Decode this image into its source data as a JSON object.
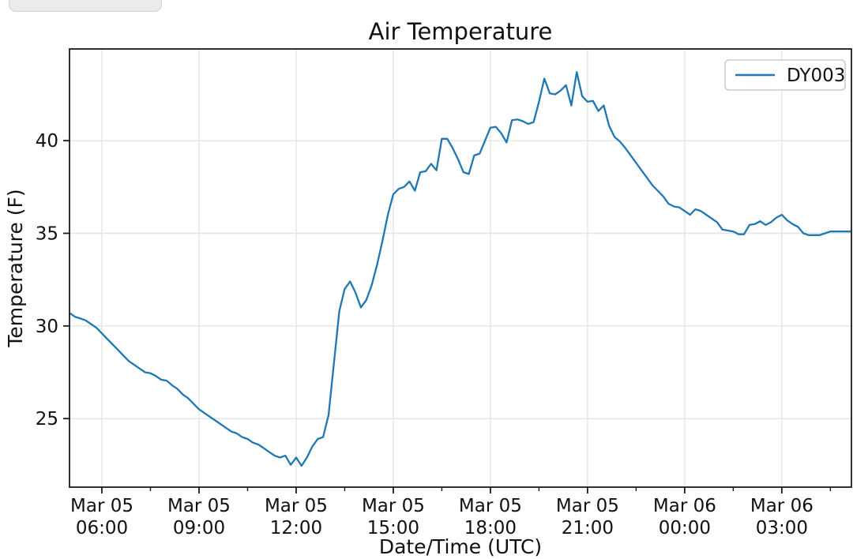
{
  "chart_data": {
    "type": "line",
    "title": "Air Temperature",
    "xlabel": "Date/Time (UTC)",
    "ylabel": "Temperature (F)",
    "grid": true,
    "legend": {
      "position": "upper right",
      "entries": [
        "DY003"
      ]
    },
    "colors": {
      "line": "#1f77b4",
      "grid": "#e5e5e5",
      "spine": "#1a1a1a",
      "legend_border": "#cccccc"
    },
    "xlim_hours": [
      5.0,
      29.15
    ],
    "ylim": [
      21.3,
      44.95
    ],
    "y_ticks": [
      {
        "value": 25,
        "label": "25"
      },
      {
        "value": 30,
        "label": "30"
      },
      {
        "value": 35,
        "label": "35"
      },
      {
        "value": 40,
        "label": "40"
      }
    ],
    "x_ticks": [
      {
        "hour": 6,
        "date": "Mar 05",
        "time": "06:00"
      },
      {
        "hour": 9,
        "date": "Mar 05",
        "time": "09:00"
      },
      {
        "hour": 12,
        "date": "Mar 05",
        "time": "12:00"
      },
      {
        "hour": 15,
        "date": "Mar 05",
        "time": "15:00"
      },
      {
        "hour": 18,
        "date": "Mar 05",
        "time": "18:00"
      },
      {
        "hour": 21,
        "date": "Mar 05",
        "time": "21:00"
      },
      {
        "hour": 24,
        "date": "Mar 06",
        "time": "00:00"
      },
      {
        "hour": 27,
        "date": "Mar 06",
        "time": "03:00"
      }
    ],
    "x_minor_ticks_hours": [
      7.5,
      10.5,
      13.5,
      16.5,
      19.5,
      22.5,
      25.5,
      28.5
    ],
    "series": [
      {
        "name": "DY003",
        "color": "#1f77b4",
        "start": "Mar 05 05:00",
        "start_hour": 5,
        "interval_minutes": 10,
        "values": [
          30.7,
          30.5,
          30.4,
          30.3,
          30.1,
          29.9,
          29.6,
          29.3,
          29.0,
          28.7,
          28.4,
          28.1,
          27.9,
          27.7,
          27.5,
          27.45,
          27.3,
          27.1,
          27.05,
          26.8,
          26.6,
          26.3,
          26.1,
          25.8,
          25.5,
          25.3,
          25.1,
          24.9,
          24.7,
          24.5,
          24.3,
          24.2,
          24.0,
          23.9,
          23.7,
          23.6,
          23.4,
          23.2,
          23.0,
          22.9,
          23.0,
          22.5,
          22.9,
          22.45,
          22.9,
          23.5,
          23.9,
          24.0,
          25.2,
          28.0,
          30.8,
          32.0,
          32.4,
          31.8,
          31.0,
          31.4,
          32.2,
          33.3,
          34.6,
          36.0,
          37.1,
          37.4,
          37.5,
          37.8,
          37.3,
          38.3,
          38.35,
          38.75,
          38.4,
          40.1,
          40.1,
          39.6,
          39.0,
          38.3,
          38.2,
          39.2,
          39.3,
          40.0,
          40.7,
          40.75,
          40.4,
          39.9,
          41.1,
          41.15,
          41.05,
          40.9,
          41.0,
          42.1,
          43.35,
          42.55,
          42.5,
          42.7,
          43.0,
          41.9,
          43.7,
          42.4,
          42.1,
          42.15,
          41.6,
          41.9,
          40.8,
          40.2,
          39.95,
          39.6,
          39.2,
          38.8,
          38.4,
          38.0,
          37.6,
          37.3,
          37.0,
          36.6,
          36.45,
          36.4,
          36.2,
          36.0,
          36.3,
          36.2,
          36.0,
          35.8,
          35.6,
          35.2,
          35.15,
          35.1,
          34.95,
          34.95,
          35.45,
          35.5,
          35.65,
          35.45,
          35.6,
          35.85,
          36.0,
          35.7,
          35.5,
          35.35,
          35.0,
          34.9,
          34.9,
          34.9,
          35.0,
          35.1,
          35.1,
          35.1,
          35.1,
          35.1
        ]
      }
    ]
  }
}
